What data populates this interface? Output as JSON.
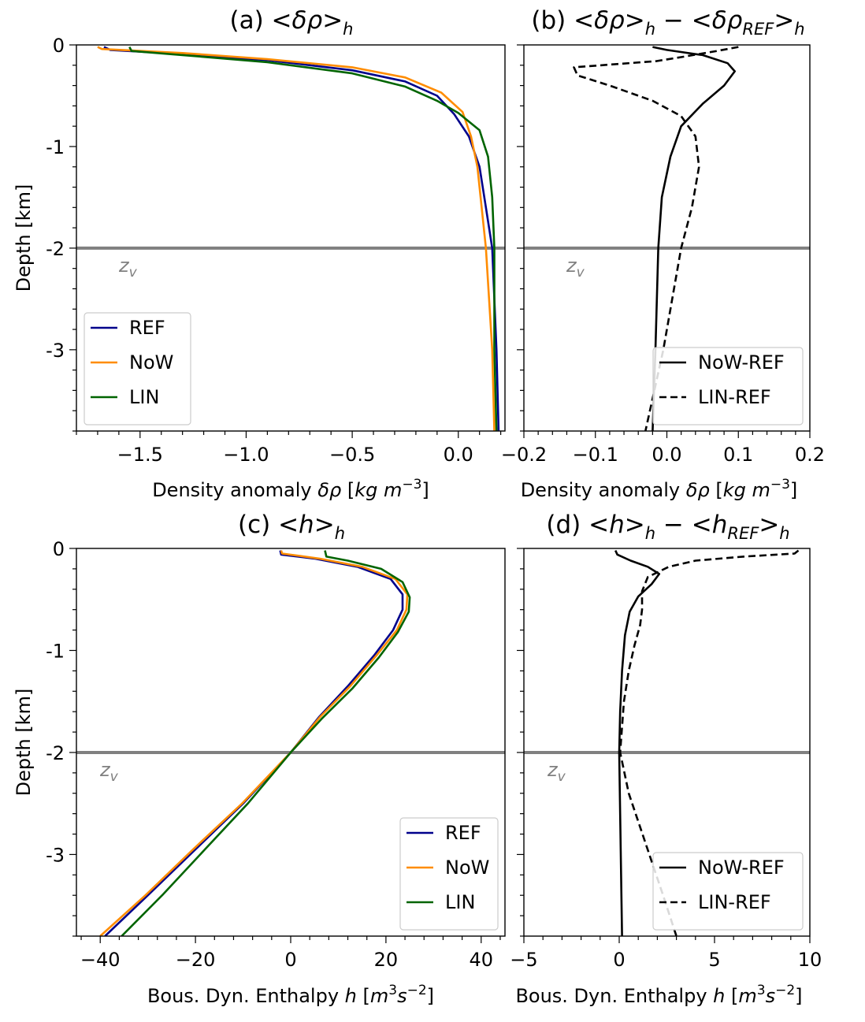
{
  "chart_data": [
    {
      "panel": "a",
      "type": "line",
      "title": "(a) <δρ>_h",
      "title_parts": {
        "prefix": "(a)  <",
        "symbol": "δρ",
        "suffix": ">",
        "sub": "h",
        "mid": "",
        "ref_symbol": "",
        "ref_sub": "",
        "ref_suffix": "",
        "ref_tail": ""
      },
      "xlabel": "Density anomaly δρ [kg m⁻³]",
      "xlabel_parts": {
        "text": "Density anomaly ",
        "sym": "δρ",
        "unit_open": " [",
        "unit_a": "kg",
        "unit_b": " m",
        "exp": "−3",
        "unit_tail": "",
        "exp2": "",
        "unit_close": "]"
      },
      "ylabel": "Depth [km]",
      "xlim": [
        -1.8,
        0.22
      ],
      "ylim": [
        -3.8,
        0
      ],
      "xticks": [
        -1.5,
        -1.0,
        -0.5,
        0.0
      ],
      "xtick_labels": [
        "−1.5",
        "−1.0",
        "−0.5",
        "0.0"
      ],
      "yticks": [
        0,
        -1,
        -2,
        -3
      ],
      "ytick_labels": [
        "0",
        "-1",
        "-2",
        "-3"
      ],
      "hline": {
        "y": -2,
        "label": "z",
        "label_sub": "v",
        "color": "#808080"
      },
      "legend_position": "lower-left",
      "series": [
        {
          "name": "REF",
          "color": "#00008b",
          "dash": "solid",
          "points": [
            [
              -1.67,
              -0.02
            ],
            [
              -1.64,
              -0.05
            ],
            [
              -1.3,
              -0.09
            ],
            [
              -0.9,
              -0.15
            ],
            [
              -0.5,
              -0.25
            ],
            [
              -0.25,
              -0.36
            ],
            [
              -0.1,
              -0.5
            ],
            [
              -0.02,
              -0.68
            ],
            [
              0.05,
              -0.9
            ],
            [
              0.1,
              -1.2
            ],
            [
              0.13,
              -1.6
            ],
            [
              0.16,
              -2.0
            ],
            [
              0.18,
              -3.0
            ],
            [
              0.19,
              -3.8
            ]
          ]
        },
        {
          "name": "NoW",
          "color": "#ff8c00",
          "dash": "solid",
          "points": [
            [
              -1.7,
              -0.02
            ],
            [
              -1.68,
              -0.04
            ],
            [
              -1.3,
              -0.08
            ],
            [
              -0.9,
              -0.14
            ],
            [
              -0.5,
              -0.22
            ],
            [
              -0.25,
              -0.32
            ],
            [
              -0.08,
              -0.47
            ],
            [
              0.02,
              -0.66
            ],
            [
              0.06,
              -0.9
            ],
            [
              0.09,
              -1.2
            ],
            [
              0.11,
              -1.6
            ],
            [
              0.13,
              -2.0
            ],
            [
              0.16,
              -3.0
            ],
            [
              0.17,
              -3.8
            ]
          ]
        },
        {
          "name": "LIN",
          "color": "#006400",
          "dash": "solid",
          "points": [
            [
              -1.55,
              -0.02
            ],
            [
              -1.54,
              -0.06
            ],
            [
              -1.3,
              -0.1
            ],
            [
              -0.9,
              -0.17
            ],
            [
              -0.5,
              -0.28
            ],
            [
              -0.25,
              -0.41
            ],
            [
              -0.1,
              -0.55
            ],
            [
              0.0,
              -0.67
            ],
            [
              0.1,
              -0.84
            ],
            [
              0.14,
              -1.1
            ],
            [
              0.16,
              -1.5
            ],
            [
              0.17,
              -2.0
            ],
            [
              0.17,
              -3.0
            ],
            [
              0.18,
              -3.8
            ]
          ]
        }
      ]
    },
    {
      "panel": "b",
      "type": "line",
      "title": "(b) <δρ>_h − <δρ_REF>_h",
      "title_parts": {
        "prefix": "(b)  <",
        "symbol": "δρ",
        "suffix": ">",
        "sub": "h",
        "mid": " − <",
        "ref_symbol": "δρ",
        "ref_sub": "REF",
        "ref_suffix": ">",
        "ref_tail": "h"
      },
      "xlabel": "Density anomaly δρ [kg m⁻³]",
      "xlabel_parts": {
        "text": "Density anomaly ",
        "sym": "δρ",
        "unit_open": " [",
        "unit_a": "kg",
        "unit_b": " m",
        "exp": "−3",
        "unit_tail": "",
        "exp2": "",
        "unit_close": "]"
      },
      "ylabel": "",
      "xlim": [
        -0.2,
        0.2
      ],
      "ylim": [
        -3.8,
        0
      ],
      "xticks": [
        -0.2,
        -0.1,
        0.0,
        0.1,
        0.2
      ],
      "xtick_labels": [
        "−0.2",
        "−0.1",
        "0.0",
        "0.1",
        "0.2"
      ],
      "yticks": [
        0,
        -1,
        -2,
        -3
      ],
      "ytick_labels": [],
      "hline": {
        "y": -2,
        "label": "z",
        "label_sub": "v",
        "color": "#808080"
      },
      "legend_position": "lower-right",
      "series": [
        {
          "name": "NoW-REF",
          "color": "#000000",
          "dash": "solid",
          "points": [
            [
              -0.02,
              -0.02
            ],
            [
              0.0,
              -0.05
            ],
            [
              0.05,
              -0.1
            ],
            [
              0.085,
              -0.18
            ],
            [
              0.095,
              -0.26
            ],
            [
              0.08,
              -0.4
            ],
            [
              0.05,
              -0.58
            ],
            [
              0.02,
              -0.8
            ],
            [
              0.005,
              -1.1
            ],
            [
              -0.007,
              -1.5
            ],
            [
              -0.012,
              -2.0
            ],
            [
              -0.016,
              -3.0
            ],
            [
              -0.02,
              -3.8
            ]
          ]
        },
        {
          "name": "LIN-REF",
          "color": "#000000",
          "dash": "dashed",
          "points": [
            [
              0.1,
              -0.02
            ],
            [
              0.07,
              -0.06
            ],
            [
              0.02,
              -0.12
            ],
            [
              -0.015,
              -0.16
            ],
            [
              -0.13,
              -0.22
            ],
            [
              -0.125,
              -0.3
            ],
            [
              -0.08,
              -0.4
            ],
            [
              -0.02,
              -0.55
            ],
            [
              0.02,
              -0.7
            ],
            [
              0.04,
              -0.9
            ],
            [
              0.045,
              -1.2
            ],
            [
              0.035,
              -1.6
            ],
            [
              0.02,
              -2.0
            ],
            [
              -0.005,
              -3.0
            ],
            [
              -0.03,
              -3.8
            ]
          ]
        }
      ]
    },
    {
      "panel": "c",
      "type": "line",
      "title": "(c) <h>_h",
      "title_parts": {
        "prefix": "(c)  <",
        "symbol": "h",
        "suffix": ">",
        "sub": "h",
        "mid": "",
        "ref_symbol": "",
        "ref_sub": "",
        "ref_suffix": "",
        "ref_tail": ""
      },
      "xlabel": "Bous. Dyn. Enthalpy h [m³s⁻²]",
      "xlabel_parts": {
        "text": "Bous. Dyn. Enthalpy ",
        "sym": "h",
        "unit_open": " [",
        "unit_a": "m",
        "unit_b": "",
        "exp": "3",
        "unit_tail": "s",
        "exp2": "−2",
        "unit_close": "]"
      },
      "ylabel": "Depth [km]",
      "xlim": [
        -45,
        45
      ],
      "ylim": [
        -3.8,
        0
      ],
      "xticks": [
        -40,
        -20,
        0,
        20,
        40
      ],
      "xtick_labels": [
        "−40",
        "−20",
        "0",
        "20",
        "40"
      ],
      "yticks": [
        0,
        -1,
        -2,
        -3
      ],
      "ytick_labels": [
        "0",
        "-1",
        "-2",
        "-3"
      ],
      "hline": {
        "y": -2,
        "label": "z",
        "label_sub": "v",
        "color": "#808080"
      },
      "legend_position": "lower-right",
      "series": [
        {
          "name": "REF",
          "color": "#00008b",
          "dash": "solid",
          "points": [
            [
              -2.2,
              -0.02
            ],
            [
              -2.0,
              -0.06
            ],
            [
              5,
              -0.1
            ],
            [
              14,
              -0.18
            ],
            [
              21,
              -0.3
            ],
            [
              23.5,
              -0.45
            ],
            [
              23.5,
              -0.6
            ],
            [
              21.5,
              -0.8
            ],
            [
              17.5,
              -1.05
            ],
            [
              12,
              -1.35
            ],
            [
              6,
              -1.65
            ],
            [
              0,
              -2.0
            ],
            [
              -10,
              -2.5
            ],
            [
              -20,
              -2.95
            ],
            [
              -30,
              -3.4
            ],
            [
              -39,
              -3.8
            ]
          ]
        },
        {
          "name": "NoW",
          "color": "#ff8c00",
          "dash": "solid",
          "points": [
            [
              -2.0,
              -0.02
            ],
            [
              -1.8,
              -0.05
            ],
            [
              6,
              -0.1
            ],
            [
              15,
              -0.18
            ],
            [
              22,
              -0.3
            ],
            [
              24.5,
              -0.45
            ],
            [
              24.3,
              -0.6
            ],
            [
              22.3,
              -0.8
            ],
            [
              18,
              -1.05
            ],
            [
              12.5,
              -1.35
            ],
            [
              6.2,
              -1.65
            ],
            [
              0,
              -2.0
            ],
            [
              -10.2,
              -2.5
            ],
            [
              -20.5,
              -2.95
            ],
            [
              -30.5,
              -3.4
            ],
            [
              -40,
              -3.8
            ]
          ]
        },
        {
          "name": "LIN",
          "color": "#006400",
          "dash": "solid",
          "points": [
            [
              7.2,
              -0.02
            ],
            [
              7.5,
              -0.08
            ],
            [
              12,
              -0.12
            ],
            [
              19,
              -0.2
            ],
            [
              23.5,
              -0.33
            ],
            [
              25,
              -0.48
            ],
            [
              24.8,
              -0.62
            ],
            [
              22.5,
              -0.82
            ],
            [
              18.5,
              -1.07
            ],
            [
              13,
              -1.37
            ],
            [
              6.5,
              -1.67
            ],
            [
              0,
              -2.0
            ],
            [
              -9,
              -2.5
            ],
            [
              -18,
              -2.95
            ],
            [
              -27,
              -3.4
            ],
            [
              -35.5,
              -3.8
            ]
          ]
        }
      ]
    },
    {
      "panel": "d",
      "type": "line",
      "title": "(d) <h>_h − <h_REF>_h",
      "title_parts": {
        "prefix": "(d)  <",
        "symbol": "h",
        "suffix": ">",
        "sub": "h",
        "mid": " − <",
        "ref_symbol": "h",
        "ref_sub": "REF",
        "ref_suffix": ">",
        "ref_tail": "h"
      },
      "xlabel": "Bous. Dyn. Enthalpy h [m³s⁻²]",
      "xlabel_parts": {
        "text": "Bous. Dyn. Enthalpy ",
        "sym": "h",
        "unit_open": " [",
        "unit_a": "m",
        "unit_b": "",
        "exp": "3",
        "unit_tail": "s",
        "exp2": "−2",
        "unit_close": "]"
      },
      "ylabel": "",
      "xlim": [
        -5,
        10
      ],
      "ylim": [
        -3.8,
        0
      ],
      "xticks": [
        -5,
        0,
        5,
        10
      ],
      "xtick_labels": [
        "−5",
        "0",
        "5",
        "10"
      ],
      "yticks": [
        0,
        -1,
        -2,
        -3
      ],
      "ytick_labels": [],
      "hline": {
        "y": -2,
        "label": "z",
        "label_sub": "v",
        "color": "#808080"
      },
      "legend_position": "lower-right",
      "series": [
        {
          "name": "NoW-REF",
          "color": "#000000",
          "dash": "solid",
          "points": [
            [
              -0.2,
              -0.02
            ],
            [
              -0.1,
              -0.06
            ],
            [
              0.6,
              -0.12
            ],
            [
              1.5,
              -0.18
            ],
            [
              2.1,
              -0.25
            ],
            [
              1.7,
              -0.35
            ],
            [
              1.0,
              -0.47
            ],
            [
              0.55,
              -0.62
            ],
            [
              0.3,
              -0.85
            ],
            [
              0.15,
              -1.2
            ],
            [
              0.05,
              -1.6
            ],
            [
              0.0,
              -2.0
            ],
            [
              0.05,
              -2.6
            ],
            [
              0.1,
              -3.2
            ],
            [
              0.15,
              -3.8
            ]
          ]
        },
        {
          "name": "LIN-REF",
          "color": "#000000",
          "dash": "dashed",
          "points": [
            [
              9.4,
              -0.02
            ],
            [
              9.2,
              -0.05
            ],
            [
              6.5,
              -0.08
            ],
            [
              4.0,
              -0.12
            ],
            [
              2.6,
              -0.18
            ],
            [
              1.5,
              -0.28
            ],
            [
              1.2,
              -0.42
            ],
            [
              1.2,
              -0.6
            ],
            [
              1.1,
              -0.75
            ],
            [
              0.8,
              -0.95
            ],
            [
              0.5,
              -1.2
            ],
            [
              0.25,
              -1.5
            ],
            [
              0.05,
              -2.0
            ],
            [
              0.5,
              -2.4
            ],
            [
              1.4,
              -2.9
            ],
            [
              2.3,
              -3.4
            ],
            [
              3.0,
              -3.8
            ]
          ]
        }
      ]
    }
  ]
}
